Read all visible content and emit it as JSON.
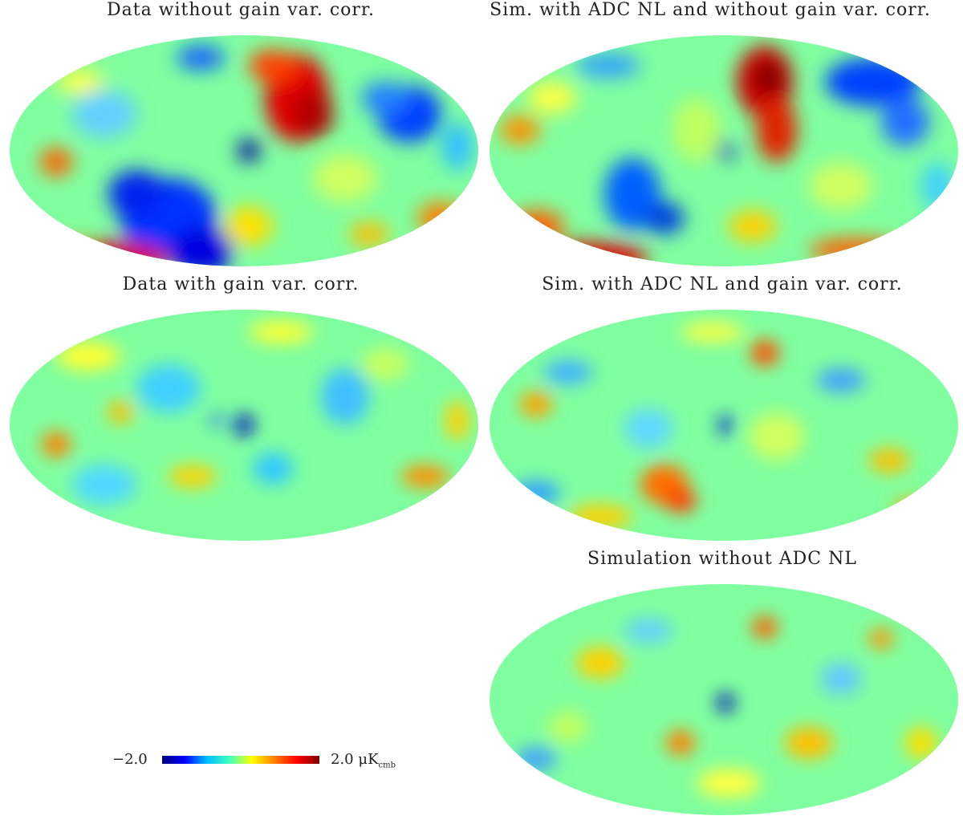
{
  "panels": [
    {
      "title": "Data without gain var. corr."
    },
    {
      "title": "Sim. with ADC NL and without gain var. corr."
    },
    {
      "title": "Data with gain var. corr."
    },
    {
      "title": "Sim. with ADC NL and gain var. corr."
    },
    {
      "title": "Simulation without ADC NL"
    }
  ],
  "colorbar": {
    "min_label": "−2.0",
    "max_label": "2.0",
    "unit": "μK",
    "unit_sub": "cmb",
    "colors": [
      "#00007f",
      "#0000ff",
      "#00bfff",
      "#3fffbf",
      "#ffff00",
      "#ff7f00",
      "#ff0000",
      "#7f0000"
    ]
  },
  "projection": "mollweide"
}
